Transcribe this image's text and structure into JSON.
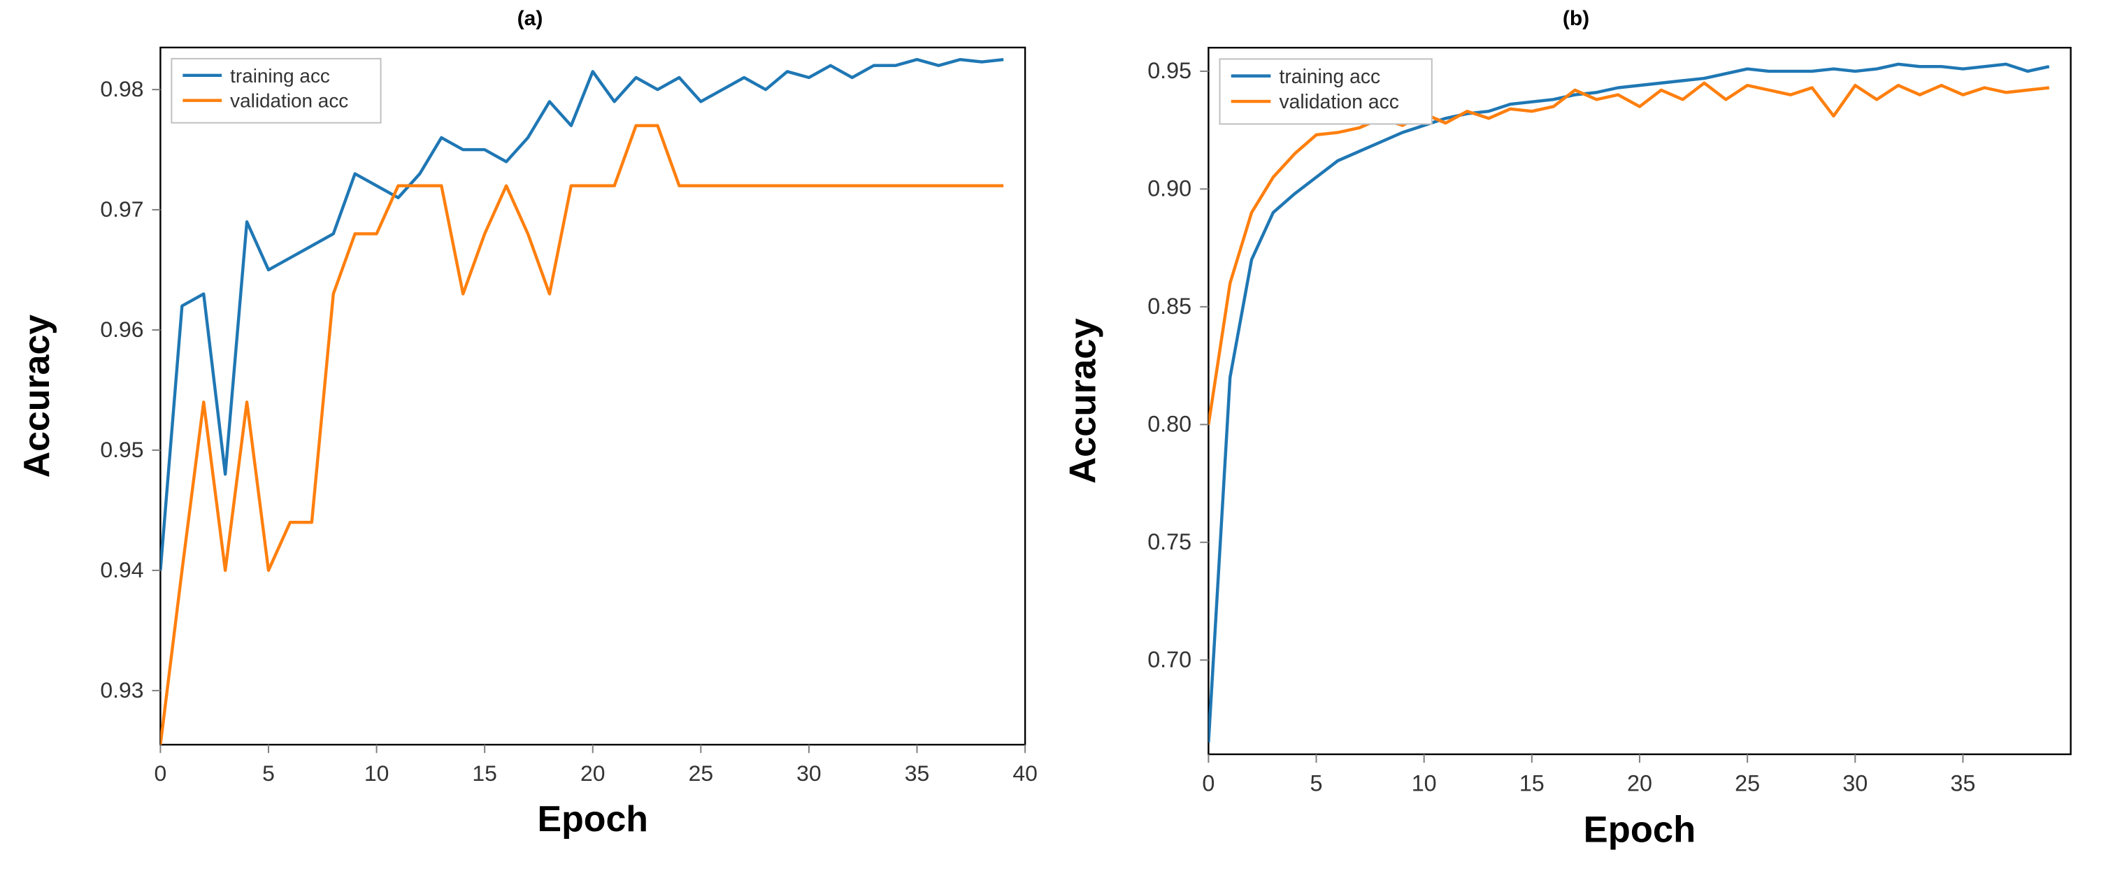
{
  "panels": [
    {
      "title": "(a)",
      "xlabel": "Epoch",
      "ylabel": "Accuracy",
      "xlim": [
        0,
        40
      ],
      "xticks": [
        0,
        5,
        10,
        15,
        20,
        25,
        30,
        35,
        40
      ],
      "ylim": [
        0.9255,
        0.9835
      ],
      "yticks": [
        0.93,
        0.94,
        0.95,
        0.96,
        0.97,
        0.98
      ],
      "background_color": "#ffffff",
      "axis_color": "#000000",
      "tick_color": "#808080",
      "line_width": 2.2,
      "legend": {
        "items": [
          {
            "label": "training acc",
            "color": "#1f77b4"
          },
          {
            "label": "validation acc",
            "color": "#ff7f0e"
          }
        ]
      },
      "series": [
        {
          "color": "#1f77b4",
          "x": [
            0,
            1,
            2,
            3,
            4,
            5,
            6,
            7,
            8,
            9,
            10,
            11,
            12,
            13,
            14,
            15,
            16,
            17,
            18,
            19,
            20,
            21,
            22,
            23,
            24,
            25,
            26,
            27,
            28,
            29,
            30,
            31,
            32,
            33,
            34,
            35,
            36,
            37,
            38,
            39
          ],
          "y": [
            0.94,
            0.962,
            0.963,
            0.948,
            0.969,
            0.965,
            0.966,
            0.967,
            0.968,
            0.973,
            0.972,
            0.971,
            0.973,
            0.976,
            0.975,
            0.975,
            0.974,
            0.976,
            0.979,
            0.977,
            0.9815,
            0.979,
            0.981,
            0.98,
            0.981,
            0.979,
            0.98,
            0.981,
            0.98,
            0.9815,
            0.981,
            0.982,
            0.981,
            0.982,
            0.982,
            0.9825,
            0.982,
            0.9825,
            0.9823,
            0.9825
          ]
        },
        {
          "color": "#ff7f0e",
          "x": [
            0,
            1,
            2,
            3,
            4,
            5,
            6,
            7,
            8,
            9,
            10,
            11,
            12,
            13,
            14,
            15,
            16,
            17,
            18,
            19,
            20,
            21,
            22,
            23,
            24,
            25,
            26,
            27,
            28,
            29,
            30,
            31,
            32,
            33,
            34,
            35,
            36,
            37,
            38,
            39
          ],
          "y": [
            0.9255,
            0.94,
            0.954,
            0.94,
            0.954,
            0.94,
            0.944,
            0.944,
            0.963,
            0.968,
            0.968,
            0.972,
            0.972,
            0.972,
            0.963,
            0.968,
            0.972,
            0.968,
            0.963,
            0.972,
            0.972,
            0.972,
            0.977,
            0.977,
            0.972,
            0.972,
            0.972,
            0.972,
            0.972,
            0.972,
            0.972,
            0.972,
            0.972,
            0.972,
            0.972,
            0.972,
            0.972,
            0.972,
            0.972,
            0.972
          ]
        }
      ]
    },
    {
      "title": "(b)",
      "xlabel": "Epoch",
      "ylabel": "Accuracy",
      "xlim": [
        0,
        40
      ],
      "xticks": [
        0,
        5,
        10,
        15,
        20,
        25,
        30,
        35
      ],
      "ylim": [
        0.66,
        0.96
      ],
      "yticks": [
        0.7,
        0.75,
        0.8,
        0.85,
        0.9,
        0.95
      ],
      "background_color": "#ffffff",
      "axis_color": "#000000",
      "tick_color": "#808080",
      "line_width": 2.2,
      "legend": {
        "items": [
          {
            "label": "training acc",
            "color": "#1f77b4"
          },
          {
            "label": "validation acc",
            "color": "#ff7f0e"
          }
        ]
      },
      "series": [
        {
          "color": "#1f77b4",
          "x": [
            0,
            1,
            2,
            3,
            4,
            5,
            6,
            7,
            8,
            9,
            10,
            11,
            12,
            13,
            14,
            15,
            16,
            17,
            18,
            19,
            20,
            21,
            22,
            23,
            24,
            25,
            26,
            27,
            28,
            29,
            30,
            31,
            32,
            33,
            34,
            35,
            36,
            37,
            38,
            39
          ],
          "y": [
            0.665,
            0.82,
            0.87,
            0.89,
            0.898,
            0.905,
            0.912,
            0.916,
            0.92,
            0.924,
            0.927,
            0.93,
            0.932,
            0.933,
            0.936,
            0.937,
            0.938,
            0.94,
            0.941,
            0.943,
            0.944,
            0.945,
            0.946,
            0.947,
            0.949,
            0.951,
            0.95,
            0.95,
            0.95,
            0.951,
            0.95,
            0.951,
            0.953,
            0.952,
            0.952,
            0.951,
            0.952,
            0.953,
            0.95,
            0.952
          ]
        },
        {
          "color": "#ff7f0e",
          "x": [
            0,
            1,
            2,
            3,
            4,
            5,
            6,
            7,
            8,
            9,
            10,
            11,
            12,
            13,
            14,
            15,
            16,
            17,
            18,
            19,
            20,
            21,
            22,
            23,
            24,
            25,
            26,
            27,
            28,
            29,
            30,
            31,
            32,
            33,
            34,
            35,
            36,
            37,
            38,
            39
          ],
          "y": [
            0.8,
            0.86,
            0.89,
            0.905,
            0.915,
            0.923,
            0.924,
            0.926,
            0.93,
            0.927,
            0.932,
            0.928,
            0.933,
            0.93,
            0.934,
            0.933,
            0.935,
            0.942,
            0.938,
            0.94,
            0.935,
            0.942,
            0.938,
            0.945,
            0.938,
            0.944,
            0.942,
            0.94,
            0.943,
            0.931,
            0.944,
            0.938,
            0.944,
            0.94,
            0.944,
            0.94,
            0.943,
            0.941,
            0.942,
            0.943
          ]
        }
      ]
    }
  ]
}
